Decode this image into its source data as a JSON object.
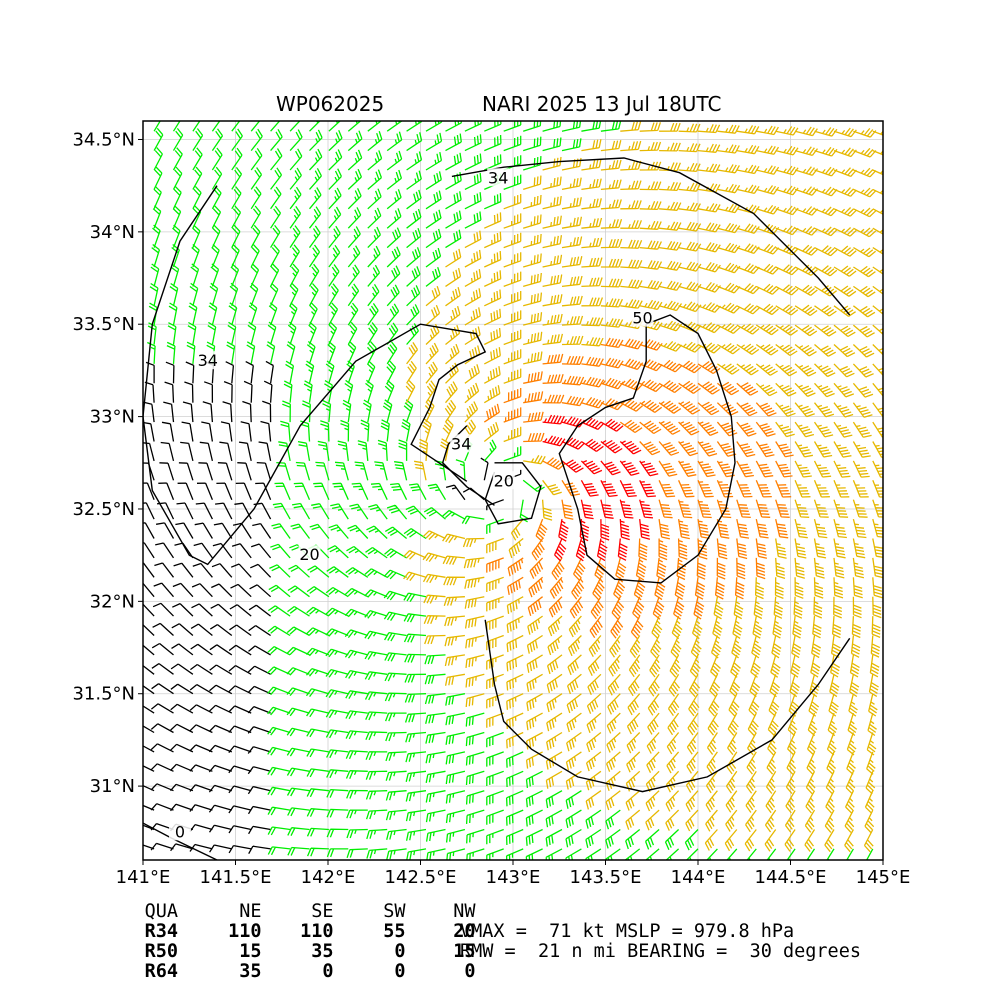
{
  "titles": {
    "storm_id": "WP062025",
    "model_time": "NARI 2025 13 Jul 18UTC"
  },
  "chart_data": {
    "type": "wind-barb-map",
    "xlim": [
      141.0,
      145.0
    ],
    "ylim": [
      30.6,
      34.6
    ],
    "x_ticks": [
      141.0,
      141.5,
      142.0,
      142.5,
      143.0,
      143.5,
      144.0,
      144.5,
      145.0
    ],
    "x_tick_labels": [
      "141°E",
      "141.5°E",
      "142°E",
      "142.5°E",
      "143°E",
      "143.5°E",
      "144°E",
      "144.5°E",
      "145°E"
    ],
    "y_ticks": [
      31.0,
      31.5,
      32.0,
      32.5,
      33.0,
      33.5,
      34.0,
      34.5
    ],
    "y_tick_labels": [
      "31°N",
      "31.5°N",
      "32°N",
      "32.5°N",
      "33°N",
      "33.5°N",
      "34°N",
      "34.5°N"
    ],
    "grid": true,
    "storm_center": {
      "lon": 142.95,
      "lat": 32.6
    },
    "colors": {
      "weak": "#000000",
      "tropical_storm": "#00ee00",
      "gale34": "#e6b800",
      "storm50": "#ff7f00",
      "hurricane64": "#ff0000",
      "contour": "#000000"
    },
    "contours": [
      {
        "label": "34",
        "lon": 142.92,
        "lat": 34.29,
        "points": [
          [
            142.67,
            34.3
          ],
          [
            142.95,
            34.35
          ],
          [
            143.25,
            34.38
          ],
          [
            143.6,
            34.4
          ],
          [
            143.9,
            34.32
          ],
          [
            144.3,
            34.1
          ],
          [
            144.65,
            33.75
          ],
          [
            144.82,
            33.55
          ]
        ]
      },
      {
        "label": "34",
        "lon": 141.35,
        "lat": 33.3,
        "points": [
          [
            141.4,
            34.25
          ],
          [
            141.2,
            33.95
          ],
          [
            141.05,
            33.5
          ],
          [
            141.0,
            33.0
          ],
          [
            141.05,
            32.6
          ],
          [
            141.25,
            32.25
          ],
          [
            141.35,
            32.2
          ],
          [
            141.6,
            32.5
          ],
          [
            141.85,
            32.95
          ],
          [
            142.15,
            33.3
          ],
          [
            142.5,
            33.5
          ],
          [
            142.8,
            33.45
          ],
          [
            142.85,
            33.35
          ],
          [
            142.7,
            33.28
          ],
          [
            142.6,
            33.2
          ],
          [
            142.55,
            33.05
          ],
          [
            142.45,
            32.85
          ],
          [
            142.6,
            32.75
          ],
          [
            142.75,
            32.65
          ]
        ]
      },
      {
        "label": "34",
        "lon": 142.72,
        "lat": 32.85,
        "points": [
          [
            142.75,
            32.95
          ],
          [
            142.65,
            32.85
          ],
          [
            142.62,
            32.75
          ],
          [
            142.75,
            32.62
          ],
          [
            142.9,
            32.52
          ]
        ]
      },
      {
        "label": "50",
        "lon": 143.7,
        "lat": 33.53,
        "points": [
          [
            143.72,
            33.5
          ],
          [
            143.85,
            33.55
          ],
          [
            144.0,
            33.45
          ],
          [
            144.1,
            33.25
          ],
          [
            144.18,
            33.0
          ],
          [
            144.2,
            32.75
          ],
          [
            144.15,
            32.5
          ],
          [
            144.0,
            32.25
          ],
          [
            143.8,
            32.1
          ],
          [
            143.55,
            32.12
          ],
          [
            143.4,
            32.25
          ],
          [
            143.35,
            32.5
          ],
          [
            143.25,
            32.8
          ],
          [
            143.35,
            32.95
          ],
          [
            143.5,
            33.05
          ],
          [
            143.65,
            33.1
          ],
          [
            143.72,
            33.3
          ],
          [
            143.72,
            33.5
          ]
        ]
      },
      {
        "label": "20",
        "lon": 142.95,
        "lat": 32.65,
        "points": [
          [
            142.9,
            32.75
          ],
          [
            143.05,
            32.75
          ],
          [
            143.15,
            32.62
          ],
          [
            143.1,
            32.45
          ],
          [
            142.92,
            32.42
          ],
          [
            142.85,
            32.55
          ],
          [
            142.9,
            32.7
          ]
        ]
      },
      {
        "label": "20",
        "lon": 141.9,
        "lat": 32.25,
        "points": []
      },
      {
        "label": "0",
        "lon": 141.2,
        "lat": 30.75,
        "points": [
          [
            141.0,
            30.8
          ],
          [
            141.15,
            30.72
          ],
          [
            141.4,
            30.6
          ]
        ]
      },
      {
        "label": "",
        "lon": 143.0,
        "lat": 31.2,
        "points": [
          [
            142.85,
            31.9
          ],
          [
            142.9,
            31.55
          ],
          [
            142.95,
            31.35
          ],
          [
            143.1,
            31.2
          ],
          [
            143.35,
            31.05
          ],
          [
            143.7,
            30.97
          ],
          [
            144.05,
            31.05
          ],
          [
            144.4,
            31.25
          ],
          [
            144.65,
            31.55
          ],
          [
            144.82,
            31.8
          ]
        ]
      }
    ],
    "wind_regions_kt": [
      {
        "name": "outer",
        "max_kt": 34,
        "color": "tropical_storm"
      },
      {
        "name": "gale",
        "min_kt": 34,
        "max_kt": 50,
        "color": "gale34"
      },
      {
        "name": "storm",
        "min_kt": 50,
        "max_kt": 64,
        "color": "storm50"
      },
      {
        "name": "hurricane",
        "min_kt": 64,
        "color": "hurricane64"
      }
    ]
  },
  "table": {
    "header": [
      "QUA",
      "NE",
      "SE",
      "SW",
      "NW"
    ],
    "rows": [
      {
        "label": "R34",
        "values": [
          "110",
          "110",
          "55",
          "20"
        ]
      },
      {
        "label": "R50",
        "values": [
          "15",
          "35",
          "0",
          "15"
        ]
      },
      {
        "label": "R64",
        "values": [
          "35",
          "0",
          "0",
          "0"
        ]
      }
    ]
  },
  "stats": {
    "line1": "VMAX =  71 kt MSLP = 979.8 hPa",
    "line2": "RMW =  21 n mi BEARING =  30 degrees"
  }
}
